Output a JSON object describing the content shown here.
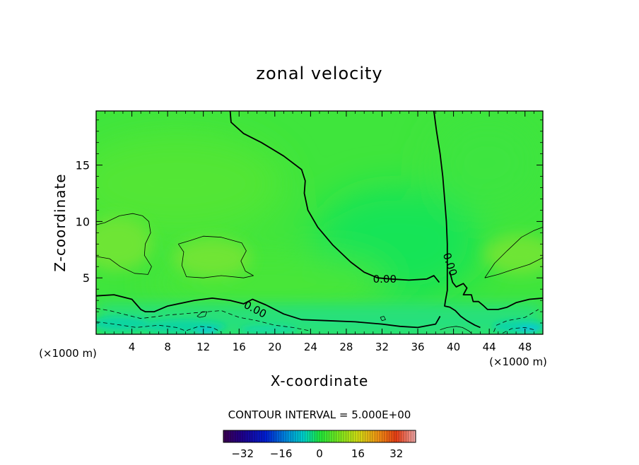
{
  "chart_data": {
    "type": "heatmap",
    "title": "zonal velocity",
    "xlabel": "X-coordinate",
    "ylabel": "Z-coordinate",
    "x_unit_label": "(×1000 m)",
    "x_ticks": [
      4,
      8,
      12,
      16,
      20,
      24,
      28,
      32,
      36,
      40,
      44,
      48
    ],
    "y_ticks": [
      5,
      10,
      15
    ],
    "xlim": [
      0,
      50
    ],
    "ylim": [
      0,
      19.8
    ],
    "contour_interval_label": "CONTOUR INTERVAL = 5.000E+00",
    "contour_labels": [
      {
        "text": "0.00",
        "x": 17.8,
        "y": 2.2,
        "angle": 28
      },
      {
        "text": "0.00",
        "x": 32.3,
        "y": 4.9,
        "angle": 0
      },
      {
        "text": "0.00",
        "x": 39.6,
        "y": 6.2,
        "angle": 72
      }
    ],
    "colorbar": {
      "range": [
        -40,
        40
      ],
      "ticks": [
        -32,
        -16,
        0,
        16,
        32
      ]
    },
    "zero_contours": [
      [
        [
          0,
          3.4
        ],
        [
          2,
          3.5
        ],
        [
          4,
          3.1
        ],
        [
          5,
          2.2
        ],
        [
          5.5,
          2.0
        ],
        [
          6.5,
          2.0
        ],
        [
          8,
          2.5
        ],
        [
          11,
          3.0
        ],
        [
          13,
          3.2
        ],
        [
          15,
          3.0
        ],
        [
          16.5,
          2.7
        ],
        [
          17.5,
          3.1
        ],
        [
          19,
          2.6
        ],
        [
          21,
          1.8
        ],
        [
          23,
          1.3
        ],
        [
          26,
          1.2
        ],
        [
          29,
          1.1
        ],
        [
          32,
          0.9
        ],
        [
          34,
          0.7
        ],
        [
          36,
          0.6
        ],
        [
          38,
          0.9
        ],
        [
          38.5,
          1.6
        ]
      ],
      [
        [
          15,
          19.8
        ],
        [
          15.1,
          18.8
        ],
        [
          16.5,
          17.8
        ],
        [
          18.5,
          17
        ],
        [
          21,
          15.8
        ],
        [
          23,
          14.6
        ],
        [
          23.4,
          13.6
        ],
        [
          23.3,
          12.5
        ],
        [
          23.7,
          11.0
        ],
        [
          24.8,
          9.5
        ],
        [
          26.5,
          7.9
        ],
        [
          28.5,
          6.4
        ],
        [
          30,
          5.5
        ],
        [
          31.5,
          5.0
        ],
        [
          33,
          4.9
        ],
        [
          35,
          4.8
        ],
        [
          37,
          4.9
        ],
        [
          37.8,
          5.2
        ],
        [
          38.4,
          4.6
        ]
      ],
      [
        [
          37.8,
          19.8
        ],
        [
          38.1,
          18.0
        ],
        [
          38.5,
          16.0
        ],
        [
          38.8,
          14.0
        ],
        [
          39,
          12.0
        ],
        [
          39.2,
          10.0
        ],
        [
          39.3,
          8.0
        ],
        [
          39.3,
          6.0
        ],
        [
          39.3,
          3.9
        ],
        [
          39.1,
          3.0
        ],
        [
          39,
          2.5
        ],
        [
          39.6,
          2.4
        ],
        [
          40.2,
          2.1
        ],
        [
          40.8,
          1.6
        ],
        [
          41.5,
          1.2
        ],
        [
          42.4,
          0.8
        ],
        [
          43.0,
          0.6
        ]
      ],
      [
        [
          39.6,
          5.5
        ],
        [
          39.9,
          4.6
        ],
        [
          40.3,
          4.2
        ],
        [
          41.1,
          4.5
        ],
        [
          41.5,
          4.1
        ],
        [
          41.1,
          3.5
        ],
        [
          42.0,
          3.5
        ],
        [
          42.2,
          2.9
        ],
        [
          42.8,
          2.9
        ],
        [
          43.4,
          2.5
        ],
        [
          43.8,
          2.2
        ],
        [
          45,
          2.2
        ],
        [
          46,
          2.4
        ],
        [
          47,
          2.8
        ],
        [
          48.5,
          3.1
        ],
        [
          50,
          3.2
        ]
      ]
    ],
    "positive_contours": [
      [
        [
          0,
          6.9
        ],
        [
          1.5,
          6.7
        ],
        [
          2.7,
          6.0
        ],
        [
          4.3,
          5.4
        ],
        [
          5.8,
          5.3
        ],
        [
          6.2,
          6.0
        ],
        [
          5.4,
          7.0
        ],
        [
          5.5,
          8.0
        ],
        [
          6.1,
          9.0
        ],
        [
          5.9,
          10.0
        ],
        [
          5.2,
          10.5
        ],
        [
          4.1,
          10.7
        ],
        [
          2.6,
          10.5
        ],
        [
          1.0,
          9.9
        ],
        [
          0,
          9.7
        ]
      ],
      [
        [
          9.2,
          8.0
        ],
        [
          9.8,
          7.3
        ],
        [
          9.6,
          6.1
        ],
        [
          10.1,
          5.1
        ],
        [
          12,
          5.0
        ],
        [
          14,
          5.2
        ],
        [
          16.5,
          5.0
        ],
        [
          17.6,
          5.2
        ],
        [
          16.7,
          5.6
        ],
        [
          16.2,
          6.5
        ],
        [
          16.8,
          7.4
        ],
        [
          16.3,
          8.1
        ],
        [
          14,
          8.6
        ],
        [
          12,
          8.7
        ],
        [
          10.5,
          8.3
        ],
        [
          9.2,
          8.0
        ]
      ],
      [
        [
          43.5,
          5.0
        ],
        [
          44.6,
          6.3
        ],
        [
          46.0,
          7.4
        ],
        [
          47.6,
          8.6
        ],
        [
          49.0,
          9.2
        ],
        [
          50,
          9.5
        ],
        [
          50,
          6.8
        ],
        [
          48.5,
          6.2
        ],
        [
          46.5,
          5.7
        ],
        [
          45.0,
          5.3
        ],
        [
          43.5,
          5.0
        ]
      ],
      [
        [
          11.3,
          1.6
        ],
        [
          11.9,
          2.0
        ],
        [
          12.4,
          2.0
        ],
        [
          12.2,
          1.6
        ],
        [
          11.6,
          1.5
        ],
        [
          11.3,
          1.6
        ]
      ],
      [
        [
          31.8,
          1.5
        ],
        [
          32.2,
          1.6
        ],
        [
          32.4,
          1.3
        ],
        [
          32.0,
          1.2
        ],
        [
          31.8,
          1.5
        ]
      ],
      [
        [
          38.5,
          0.4
        ],
        [
          39.3,
          0.6
        ],
        [
          40.3,
          0.7
        ],
        [
          41.0,
          0.6
        ],
        [
          41.7,
          0.3
        ],
        [
          42.0,
          0.1
        ]
      ]
    ],
    "negative_contours": [
      [
        [
          0,
          2.3
        ],
        [
          1.5,
          2.1
        ],
        [
          3,
          1.8
        ],
        [
          5,
          1.4
        ],
        [
          8,
          1.7
        ],
        [
          11,
          1.9
        ],
        [
          14,
          2.1
        ],
        [
          16,
          1.5
        ],
        [
          18,
          1.2
        ],
        [
          20,
          0.8
        ],
        [
          22,
          0.6
        ],
        [
          24,
          0.3
        ]
      ],
      [
        [
          0,
          1.1
        ],
        [
          2,
          0.9
        ],
        [
          4.5,
          0.6
        ],
        [
          7,
          0.8
        ],
        [
          9,
          0.6
        ],
        [
          10,
          0.3
        ],
        [
          11.5,
          0.7
        ],
        [
          13,
          0.6
        ],
        [
          14,
          0.2
        ]
      ],
      [
        [
          44.5,
          0.2
        ],
        [
          44.8,
          0.8
        ],
        [
          46,
          1.2
        ],
        [
          48,
          1.5
        ],
        [
          49.5,
          2.2
        ]
      ],
      [
        [
          45.5,
          0.1
        ],
        [
          46.5,
          0.5
        ],
        [
          48,
          0.6
        ],
        [
          49,
          0.4
        ]
      ]
    ]
  }
}
